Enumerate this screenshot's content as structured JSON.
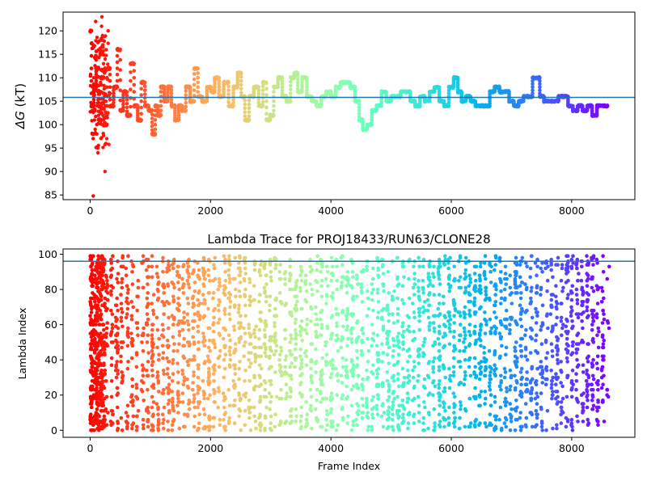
{
  "chart_data": [
    {
      "type": "scatter",
      "title": "",
      "xlabel": "",
      "ylabel_symbol": "ΔG",
      "ylabel_unit": "(kT)",
      "xlim": [
        -450,
        9050
      ],
      "ylim": [
        84,
        124
      ],
      "xticks": [
        0,
        2000,
        4000,
        6000,
        8000
      ],
      "xtick_labels": [
        "0",
        "2000",
        "4000",
        "6000",
        "8000"
      ],
      "yticks": [
        85,
        90,
        95,
        100,
        105,
        110,
        115,
        120
      ],
      "ytick_labels": [
        "85",
        "90",
        "95",
        "100",
        "105",
        "110",
        "115",
        "120"
      ],
      "hline": 105.8,
      "hline_color": "#1f77b4",
      "colormap": "rainbow",
      "grid": false,
      "legend": "none",
      "x_range_of_points": [
        0,
        8600
      ],
      "path_points": [
        [
          0,
          120
        ],
        [
          40,
          104
        ],
        [
          80,
          108
        ],
        [
          120,
          112
        ],
        [
          160,
          101
        ],
        [
          200,
          110
        ],
        [
          260,
          100
        ],
        [
          300,
          112
        ],
        [
          360,
          104
        ],
        [
          420,
          108
        ],
        [
          480,
          116
        ],
        [
          520,
          103
        ],
        [
          580,
          107
        ],
        [
          640,
          102
        ],
        [
          700,
          113
        ],
        [
          760,
          104
        ],
        [
          820,
          101
        ],
        [
          880,
          109
        ],
        [
          940,
          104
        ],
        [
          1000,
          103
        ],
        [
          1060,
          98
        ],
        [
          1100,
          104
        ],
        [
          1150,
          102
        ],
        [
          1200,
          108
        ],
        [
          1260,
          105
        ],
        [
          1320,
          108
        ],
        [
          1380,
          104
        ],
        [
          1440,
          101
        ],
        [
          1500,
          104
        ],
        [
          1560,
          103
        ],
        [
          1620,
          108
        ],
        [
          1700,
          105
        ],
        [
          1760,
          112
        ],
        [
          1820,
          106
        ],
        [
          1900,
          105
        ],
        [
          1980,
          108
        ],
        [
          2040,
          107
        ],
        [
          2100,
          110
        ],
        [
          2180,
          106
        ],
        [
          2260,
          109
        ],
        [
          2340,
          104
        ],
        [
          2420,
          108
        ],
        [
          2480,
          111
        ],
        [
          2540,
          106
        ],
        [
          2600,
          101
        ],
        [
          2680,
          106
        ],
        [
          2760,
          108
        ],
        [
          2840,
          104
        ],
        [
          2900,
          109
        ],
        [
          2960,
          101
        ],
        [
          3020,
          102
        ],
        [
          3080,
          108
        ],
        [
          3160,
          110
        ],
        [
          3220,
          106
        ],
        [
          3300,
          105
        ],
        [
          3360,
          110
        ],
        [
          3420,
          111
        ],
        [
          3480,
          107
        ],
        [
          3560,
          110
        ],
        [
          3640,
          106
        ],
        [
          3720,
          105
        ],
        [
          3800,
          104
        ],
        [
          3880,
          106
        ],
        [
          3960,
          107
        ],
        [
          4040,
          106
        ],
        [
          4120,
          108
        ],
        [
          4200,
          109
        ],
        [
          4280,
          109
        ],
        [
          4360,
          108
        ],
        [
          4440,
          105
        ],
        [
          4500,
          101
        ],
        [
          4560,
          99
        ],
        [
          4640,
          100
        ],
        [
          4720,
          103
        ],
        [
          4800,
          104
        ],
        [
          4880,
          107
        ],
        [
          4960,
          105
        ],
        [
          5040,
          106
        ],
        [
          5120,
          106
        ],
        [
          5200,
          107
        ],
        [
          5280,
          107
        ],
        [
          5360,
          105
        ],
        [
          5440,
          104
        ],
        [
          5520,
          106
        ],
        [
          5600,
          105
        ],
        [
          5680,
          107
        ],
        [
          5760,
          108
        ],
        [
          5840,
          105
        ],
        [
          5920,
          104
        ],
        [
          6000,
          108
        ],
        [
          6080,
          110
        ],
        [
          6140,
          107
        ],
        [
          6200,
          105
        ],
        [
          6280,
          106
        ],
        [
          6360,
          105
        ],
        [
          6440,
          104
        ],
        [
          6520,
          104
        ],
        [
          6600,
          104
        ],
        [
          6680,
          107
        ],
        [
          6760,
          108
        ],
        [
          6840,
          107
        ],
        [
          6920,
          107
        ],
        [
          7000,
          105
        ],
        [
          7080,
          104
        ],
        [
          7160,
          105
        ],
        [
          7240,
          106
        ],
        [
          7320,
          106
        ],
        [
          7380,
          110
        ],
        [
          7440,
          110
        ],
        [
          7500,
          106
        ],
        [
          7580,
          105
        ],
        [
          7660,
          105
        ],
        [
          7740,
          105
        ],
        [
          7820,
          106
        ],
        [
          7900,
          106
        ],
        [
          7980,
          104
        ],
        [
          8060,
          103
        ],
        [
          8140,
          104
        ],
        [
          8220,
          103
        ],
        [
          8300,
          104
        ],
        [
          8380,
          102
        ],
        [
          8460,
          104
        ],
        [
          8540,
          104
        ],
        [
          8600,
          104
        ]
      ],
      "early_scatter": {
        "x_max": 300,
        "y_values": [
          123,
          122,
          121,
          120,
          119,
          118,
          117,
          116,
          115,
          114,
          113,
          112,
          111,
          110,
          109,
          108,
          107,
          106,
          105,
          104,
          103,
          102,
          101,
          100,
          99,
          98,
          97,
          96,
          95,
          94,
          90,
          84.8
        ]
      }
    },
    {
      "type": "scatter",
      "title": "Lambda Trace for PROJ18433/RUN63/CLONE28",
      "xlabel": "Frame Index",
      "ylabel": "Lambda Index",
      "xlim": [
        -450,
        9050
      ],
      "ylim": [
        -4,
        103
      ],
      "xticks": [
        0,
        2000,
        4000,
        6000,
        8000
      ],
      "xtick_labels": [
        "0",
        "2000",
        "4000",
        "6000",
        "8000"
      ],
      "yticks": [
        0,
        20,
        40,
        60,
        80,
        100
      ],
      "ytick_labels": [
        "0",
        "20",
        "40",
        "60",
        "80",
        "100"
      ],
      "hline": 96,
      "hline_color": "#1f77b4",
      "colormap": "rainbow",
      "grid": false,
      "legend": "none",
      "x_range_of_points": [
        0,
        8600
      ],
      "y_range_of_points": [
        0,
        99
      ],
      "pattern": "points fill 0–99 range densely across all frames in vertical streaks"
    }
  ]
}
